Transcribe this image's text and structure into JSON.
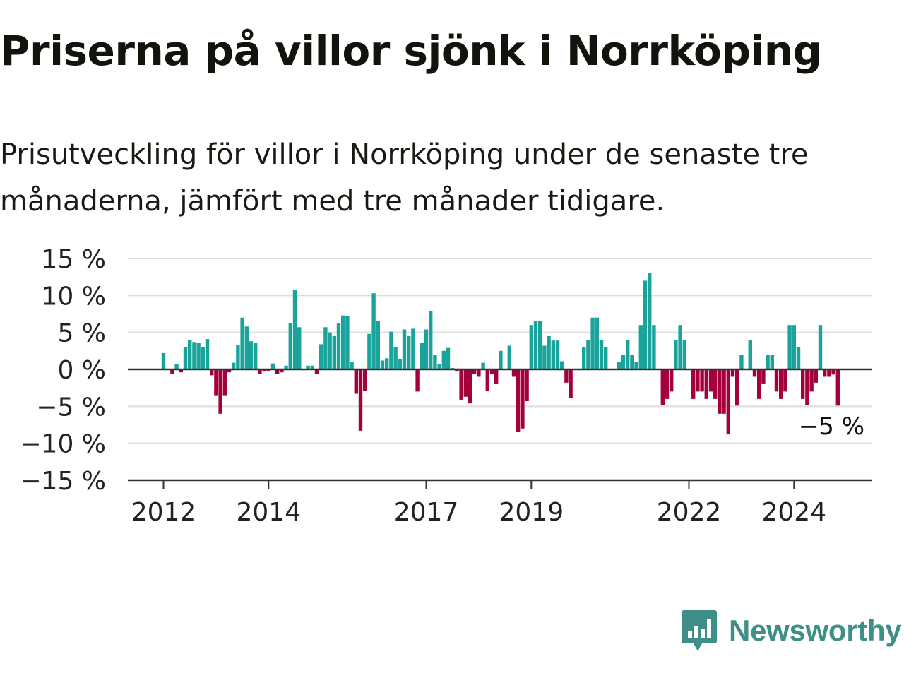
{
  "title": "Priserna på villor sjönk i Norrköping",
  "subtitle": "Prisutveckling för villor i Norrköping under de senaste tre månaderna, jämfört med tre månader tidigare.",
  "brand": {
    "name": "Newsworthy",
    "icon": "newsworthy-logo-icon",
    "color": "#3e8f88"
  },
  "colors": {
    "positive": "#1aa39a",
    "negative": "#a3003c",
    "grid": "#dddddd",
    "axis": "#333333"
  },
  "chart_data": {
    "type": "bar",
    "x_start": "2012-01",
    "x_end": "2025-03",
    "x_ticks": [
      "2012",
      "2014",
      "2017",
      "2019",
      "2022",
      "2024"
    ],
    "y_ticks": [
      "15 %",
      "10 %",
      "5 %",
      "0 %",
      "−5 %",
      "−10 %",
      "−15 %"
    ],
    "ylim": [
      -15,
      15
    ],
    "grid": true,
    "annotation": "−5 %",
    "series": [
      {
        "values": [
          2.2,
          0,
          -0.6,
          0.7,
          -0.4,
          3.0,
          4.0,
          3.7,
          3.6,
          3.0,
          4.1,
          -0.8,
          -3.5,
          -6.0,
          -3.5,
          -0.4,
          0.9,
          3.3,
          7.0,
          5.8,
          3.8,
          3.6,
          -0.6,
          -0.3,
          -0.2,
          0.8,
          -0.6,
          -0.4,
          0.5,
          6.3,
          10.8,
          5.7,
          0,
          0.5,
          0.5,
          -0.6,
          3.4,
          5.7,
          5.0,
          4.5,
          6.2,
          7.3,
          7.2,
          1.0,
          -3.3,
          -8.3,
          -2.9,
          4.8,
          10.3,
          6.5,
          1.2,
          1.5,
          5.1,
          3.0,
          1.4,
          5.4,
          4.5,
          5.5,
          -3.0,
          3.6,
          5.4,
          7.9,
          2.0,
          0.7,
          2.5,
          2.9,
          0.2,
          -0.3,
          -4.1,
          -3.7,
          -4.6,
          -0.6,
          -1.0,
          0.9,
          -2.9,
          -0.6,
          -2.0,
          2.5,
          0,
          3.2,
          -1.0,
          -8.5,
          -8.0,
          -4.3,
          6.0,
          6.5,
          6.6,
          3.2,
          4.5,
          3.9,
          3.9,
          1.1,
          -1.8,
          -3.9,
          0,
          0,
          3.0,
          4.0,
          7.0,
          7.0,
          4.0,
          3.0,
          0,
          0,
          1.0,
          2.0,
          4.0,
          2.0,
          1.0,
          6.0,
          12.0,
          13.0,
          6.0,
          0,
          -4.8,
          -4.0,
          -3.0,
          4.0,
          6.0,
          4.0,
          0,
          -4.0,
          -3.0,
          -3.0,
          -4.0,
          -3.0,
          -4.0,
          -6.0,
          -6.0,
          -8.8,
          -1.0,
          -4.9,
          2.0,
          0,
          4.0,
          -1.0,
          -4.0,
          -2.0,
          2.0,
          2.0,
          -3.0,
          -4.0,
          -3.0,
          6.0,
          6.0,
          3.0,
          -4.0,
          -4.8,
          -3.0,
          -1.8,
          6.0,
          -1.0,
          -1.0,
          -0.7,
          -4.9
        ]
      }
    ]
  }
}
